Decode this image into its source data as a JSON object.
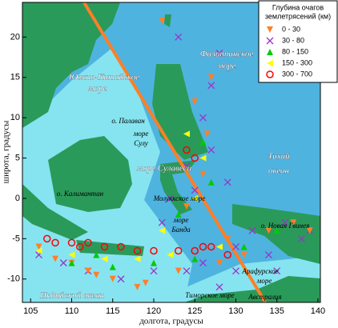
{
  "chart_data": {
    "type": "scatter",
    "x_label": "долгота, градусы",
    "y_label": "широта, градусы",
    "xlim": [
      104,
      140.3
    ],
    "ylim": [
      -12.9,
      24.3
    ],
    "xticks": [
      105,
      110,
      115,
      120,
      125,
      130,
      135,
      140
    ],
    "yticks": [
      -10,
      -5,
      0,
      5,
      10,
      15,
      20
    ],
    "legend_title": [
      "Глубина очагов",
      "землетрясений (км)"
    ],
    "legend_position": "upper right",
    "profile_line": {
      "x": [
        111.5,
        133.6
      ],
      "y": [
        24.3,
        -12.9
      ],
      "color": "#ff7f27"
    },
    "annotations": [
      "Южно-Китайское",
      "море",
      "Филиппинское",
      "море",
      "о. Палаван",
      "море",
      "Сулу",
      "море Сулавеси",
      "о. Калимантан",
      "Молуккское море",
      "море",
      "Банда",
      "о. Новая Гвинея",
      "Тихий",
      "океан",
      "Арафурское",
      "море",
      "Тиморское море",
      "Индийский океан",
      "Австралия"
    ],
    "series": [
      {
        "name": "30 - 80",
        "color": "#9933cc",
        "marker": "x",
        "x": [
          106,
          109,
          112,
          116,
          120,
          124,
          127,
          130,
          134,
          138,
          126,
          127,
          128,
          129,
          125,
          122,
          121,
          124,
          130,
          132,
          136,
          139,
          123,
          126,
          128,
          135
        ],
        "y": [
          -7,
          -8,
          -9,
          -10,
          -9,
          -9,
          14,
          -9,
          -7,
          -5,
          10,
          6,
          18,
          2,
          1,
          0,
          -3,
          4,
          -6,
          -4,
          -3,
          -4,
          20,
          -8,
          -11,
          -9
        ]
      },
      {
        "name": "0 - 30",
        "color": "#ff7f27",
        "marker": "triangle-down",
        "x": [
          110,
          112,
          108,
          115,
          119,
          121,
          125,
          126.5,
          127,
          128,
          131,
          134,
          137,
          139,
          106,
          113,
          118,
          123,
          126,
          129,
          124
        ],
        "y": [
          -8,
          -9,
          -7.5,
          -10,
          -10.5,
          22,
          12,
          8,
          15,
          -8,
          -7,
          -4,
          -3,
          -4,
          -6,
          -9.5,
          -11,
          -9,
          3,
          -5,
          -1
        ]
      },
      {
        "name": "80 - 150",
        "color": "#00cc00",
        "marker": "triangle-up",
        "x": [
          110,
          115,
          120,
          125,
          126,
          123,
          127,
          113,
          131,
          135
        ],
        "y": [
          -8,
          -8.5,
          -8,
          -7.5,
          7,
          -2,
          2,
          -7,
          -6,
          -4
        ]
      },
      {
        "name": "150 - 300",
        "color": "#ffff00",
        "marker": "triangle-left",
        "x": [
          106,
          110,
          114,
          118,
          122,
          124,
          126,
          128,
          121,
          125
        ],
        "y": [
          -6.5,
          -7,
          -7.5,
          -7.5,
          -7,
          8,
          5,
          -6,
          -4,
          0
        ]
      },
      {
        "name": "300 - 700",
        "color": "#ff0000",
        "marker": "circle",
        "x": [
          107,
          108,
          110,
          111,
          112,
          114,
          116,
          118,
          120,
          123,
          125,
          126,
          127,
          124,
          125,
          129
        ],
        "y": [
          -5,
          -5.5,
          -5.5,
          -6,
          -5.5,
          -6,
          -6,
          -6.5,
          -6.5,
          -6.5,
          -6.5,
          -6,
          -6,
          6,
          5,
          -7
        ]
      }
    ],
    "legend_order": [
      1,
      0,
      2,
      3,
      4
    ]
  }
}
